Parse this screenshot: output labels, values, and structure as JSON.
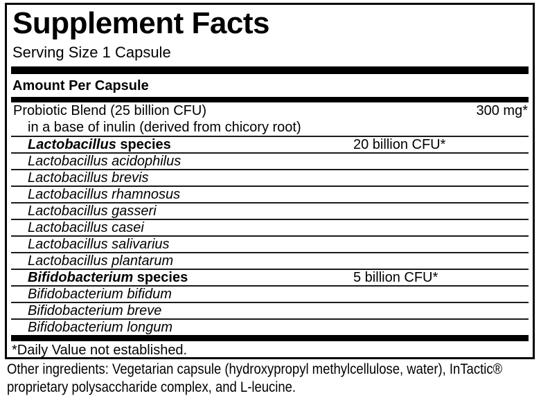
{
  "panel": {
    "title": "Supplement Facts",
    "serving_size": "Serving Size 1 Capsule",
    "amount_header": "Amount Per Capsule",
    "footnote": "*Daily Value not established.",
    "rows": [
      {
        "name": "Probiotic Blend (25 billion CFU)",
        "amount": "300 mg*"
      },
      {
        "name": "in a base of inulin (derived from chicory root)"
      },
      {
        "genus": "Lactobacillus",
        "suffix": " species",
        "amount": "20 billion CFU*"
      },
      {
        "name": "Lactobacillus acidophilus"
      },
      {
        "name": "Lactobacillus brevis"
      },
      {
        "name": "Lactobacillus rhamnosus"
      },
      {
        "name": "Lactobacillus gasseri"
      },
      {
        "name": "Lactobacillus casei"
      },
      {
        "name": "Lactobacillus salivarius"
      },
      {
        "name": "Lactobacillus plantarum"
      },
      {
        "genus": "Bifidobacterium",
        "suffix": " species",
        "amount": "5 billion CFU*"
      },
      {
        "name": "Bifidobacterium bifidum"
      },
      {
        "name": "Bifidobacterium breve"
      },
      {
        "name": "Bifidobacterium longum"
      }
    ]
  },
  "other_ingredients": {
    "lines": [
      "Other ingredients: Vegetarian capsule (hydroxypropyl methylcellulose, water), InTactic®",
      "proprietary polysaccharide complex, and L-leucine."
    ]
  },
  "colors": {
    "background": "#ffffff",
    "text": "#000000",
    "border": "#000000",
    "rule": "#1a1a1a"
  }
}
